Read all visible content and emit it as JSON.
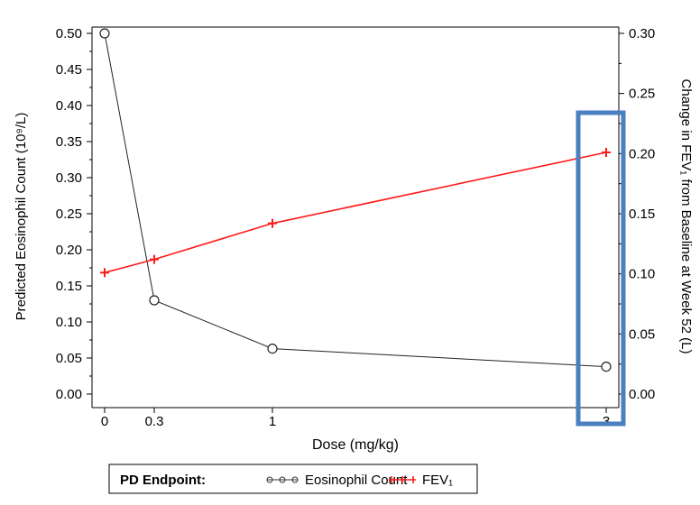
{
  "colors": {
    "background": "#0a1430",
    "panel": "#ffffff",
    "eos_series": "#222222",
    "fev_series": "#ff1a1a",
    "highlight_box": "#4a7fc1"
  },
  "chart_data": {
    "type": "line",
    "xlabel": "Dose (mg/kg)",
    "ylabel_left": "Predicted Eosinophil Count (10⁹/L)",
    "ylabel_right": "Change in FEV₁ from Baseline at Week 52 (L)",
    "x_ticks": [
      "0",
      "0.3",
      "1",
      "3"
    ],
    "x_scale": "nonlinear (0, 0.3, 1, 3)",
    "y_left_range": [
      0,
      0.5
    ],
    "y_left_ticks": [
      "0.00",
      "0.05",
      "0.10",
      "0.15",
      "0.20",
      "0.25",
      "0.30",
      "0.35",
      "0.40",
      "0.45",
      "0.50"
    ],
    "y_right_range": [
      0,
      0.3
    ],
    "y_right_ticks": [
      "0.00",
      "0.05",
      "0.10",
      "0.15",
      "0.20",
      "0.25",
      "0.30"
    ],
    "grid": false,
    "series": [
      {
        "name": "Eosinophil Count",
        "axis": "left",
        "marker": "open circle",
        "x": [
          0,
          0.3,
          1,
          3
        ],
        "y": [
          0.5,
          0.13,
          0.063,
          0.038
        ]
      },
      {
        "name": "FEV₁",
        "axis": "right",
        "marker": "plus",
        "x": [
          0,
          0.3,
          1,
          3
        ],
        "y": [
          0.101,
          0.112,
          0.142,
          0.201
        ]
      }
    ],
    "legend": {
      "title": "PD Endpoint:",
      "position": "bottom-center"
    },
    "highlight": {
      "shape": "rectangle",
      "around_x": 3
    }
  }
}
